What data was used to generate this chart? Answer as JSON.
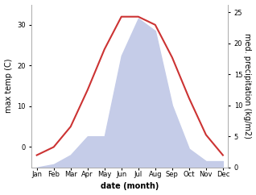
{
  "months": [
    "Jan",
    "Feb",
    "Mar",
    "Apr",
    "May",
    "Jun",
    "Jul",
    "Aug",
    "Sep",
    "Oct",
    "Nov",
    "Dec"
  ],
  "temp": [
    -2,
    0,
    5,
    14,
    24,
    32,
    32,
    30,
    22,
    12,
    3,
    -2
  ],
  "precip": [
    0,
    0.5,
    2,
    5,
    5,
    18,
    24,
    22,
    10,
    3,
    1,
    1
  ],
  "temp_color": "#cc3333",
  "precip_fill_color": "#c5cce8",
  "temp_ylim": [
    -5,
    35
  ],
  "precip_ylim": [
    0,
    26.25
  ],
  "temp_yticks": [
    0,
    10,
    20,
    30
  ],
  "precip_yticks": [
    0,
    5,
    10,
    15,
    20,
    25
  ],
  "ylabel_left": "max temp (C)",
  "ylabel_right": "med. precipitation (kg/m2)",
  "xlabel": "date (month)",
  "bg_color": "#ffffff",
  "spine_color": "#aaaaaa",
  "title_fontsize": 7,
  "tick_fontsize": 6,
  "label_fontsize": 7,
  "xlabel_fontsize": 7
}
